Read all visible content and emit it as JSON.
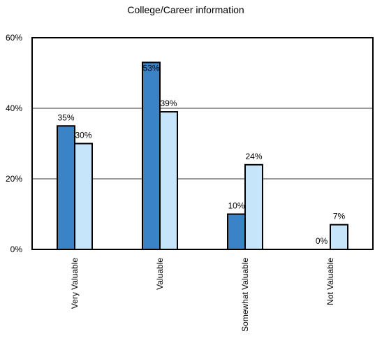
{
  "chart_data": {
    "type": "bar",
    "title": "College/Career information",
    "xlabel": "",
    "ylabel": "",
    "categories": [
      "Very Valuable",
      "Valuable",
      "Somewhat Valuable",
      "Not Valuable"
    ],
    "series": [
      {
        "values": [
          35,
          53,
          10,
          0
        ],
        "labels": [
          "35%",
          "53%",
          "10%",
          "0%"
        ],
        "color": "#3a83c7"
      },
      {
        "values": [
          30,
          39,
          24,
          7
        ],
        "labels": [
          "30%",
          "39%",
          "24%",
          "7%"
        ],
        "color": "#c6e5fb"
      }
    ],
    "ylim": [
      0,
      60
    ],
    "yticks": [
      0,
      20,
      40,
      60
    ],
    "ytick_labels": [
      "0%",
      "20%",
      "40%",
      "60%"
    ],
    "grid": true,
    "gridline_color": "#999999",
    "bar_outline_color": "#000000"
  }
}
